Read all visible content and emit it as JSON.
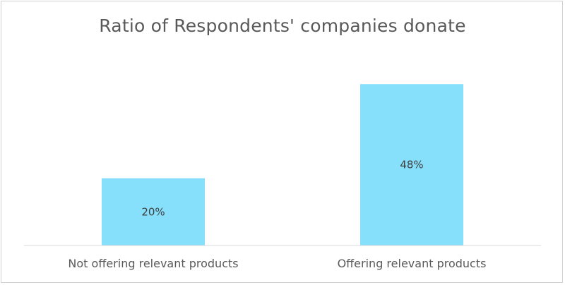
{
  "chart_data": {
    "type": "bar",
    "title": "Ratio of Respondents' companies donate",
    "categories": [
      "Not offering relevant products",
      "Offering relevant products"
    ],
    "values": [
      20,
      48
    ],
    "data_labels": [
      "20%",
      "48%"
    ],
    "xlabel": "",
    "ylabel": "",
    "ylim": [
      0,
      60
    ],
    "grid": false,
    "legend": "none",
    "bar_color": "#87E0FB",
    "axis_color": "#D9D9D9",
    "text_color": "#595959"
  }
}
